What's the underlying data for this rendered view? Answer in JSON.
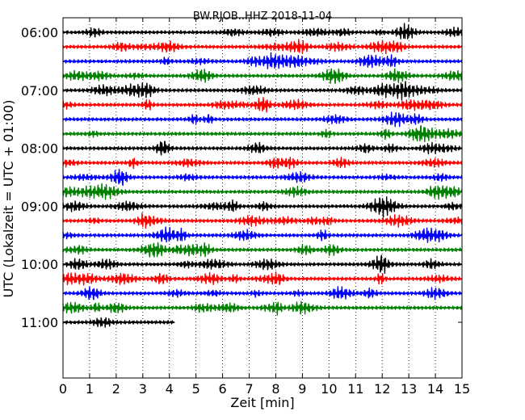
{
  "chart_data": {
    "type": "line",
    "title": "BW.RJOB..HHZ 2018-11-04",
    "xlabel": "Zeit  [min]",
    "ylabel": "UTC (Lokalzeit = UTC + 01:00)",
    "xlim": [
      0,
      15
    ],
    "x_ticks": [
      "0",
      "1",
      "2",
      "3",
      "4",
      "5",
      "6",
      "7",
      "8",
      "9",
      "10",
      "11",
      "12",
      "13",
      "14",
      "15"
    ],
    "y_ticks": [
      "06:00",
      "07:00",
      "08:00",
      "09:00",
      "10:00",
      "11:00"
    ],
    "grid": "vertical dotted",
    "trace_colors": [
      "#000000",
      "#ff0000",
      "#0000ff",
      "#008000"
    ],
    "traces_per_hour": 4,
    "traces": [
      {
        "start": "06:00",
        "duration_min": 15
      },
      {
        "start": "06:15",
        "duration_min": 15
      },
      {
        "start": "06:30",
        "duration_min": 15
      },
      {
        "start": "06:45",
        "duration_min": 15
      },
      {
        "start": "07:00",
        "duration_min": 15
      },
      {
        "start": "07:15",
        "duration_min": 15
      },
      {
        "start": "07:30",
        "duration_min": 15
      },
      {
        "start": "07:45",
        "duration_min": 15
      },
      {
        "start": "08:00",
        "duration_min": 15
      },
      {
        "start": "08:15",
        "duration_min": 15
      },
      {
        "start": "08:30",
        "duration_min": 15
      },
      {
        "start": "08:45",
        "duration_min": 15
      },
      {
        "start": "09:00",
        "duration_min": 15
      },
      {
        "start": "09:15",
        "duration_min": 15
      },
      {
        "start": "09:30",
        "duration_min": 15
      },
      {
        "start": "09:45",
        "duration_min": 15
      },
      {
        "start": "10:00",
        "duration_min": 15
      },
      {
        "start": "10:15",
        "duration_min": 15
      },
      {
        "start": "10:30",
        "duration_min": 15
      },
      {
        "start": "10:45",
        "duration_min": 15
      },
      {
        "start": "11:00",
        "duration_min": 4.2
      }
    ]
  }
}
